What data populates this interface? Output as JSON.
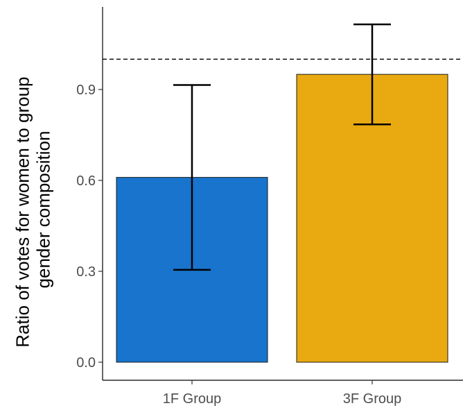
{
  "chart_data": {
    "type": "bar",
    "categories": [
      "1F Group",
      "3F Group"
    ],
    "values": [
      0.61,
      0.95
    ],
    "error_low": [
      0.305,
      0.785
    ],
    "error_high": [
      0.915,
      1.115
    ],
    "colors": [
      "#1874cd",
      "#e8a911"
    ],
    "reference_line": {
      "y": 1.0,
      "style": "dashed"
    },
    "ylabel_lines": [
      "Ratio of votes for women to group",
      "gender composition"
    ],
    "xlabel": "",
    "title": "",
    "ylim": [
      0,
      1.2
    ],
    "yticks": [
      0.0,
      0.3,
      0.6,
      0.9
    ],
    "ytick_labels": [
      "0.0",
      "0.3",
      "0.6",
      "0.9"
    ],
    "grid": false,
    "legend": "none"
  }
}
